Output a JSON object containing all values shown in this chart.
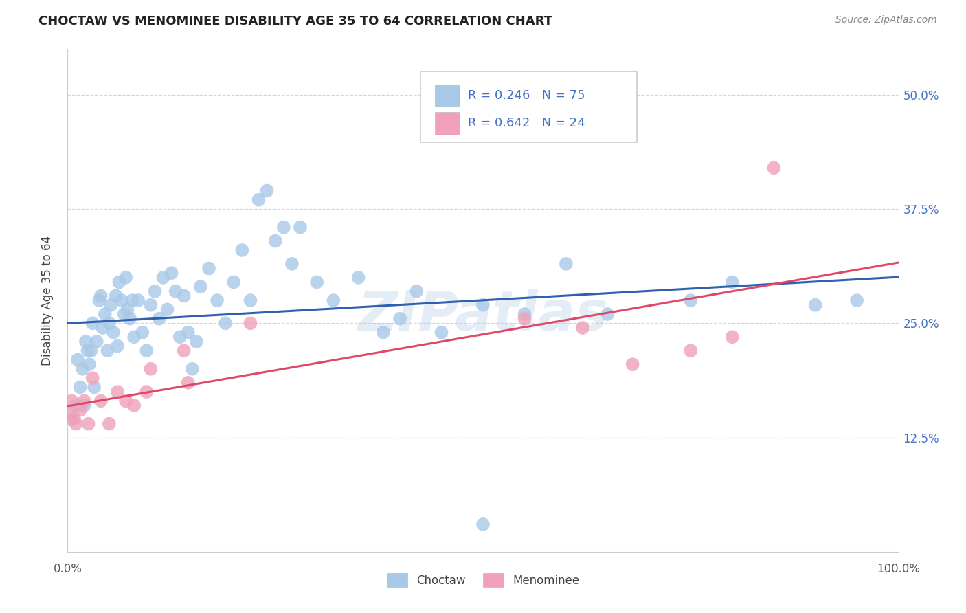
{
  "title": "CHOCTAW VS MENOMINEE DISABILITY AGE 35 TO 64 CORRELATION CHART",
  "source": "Source: ZipAtlas.com",
  "ylabel": "Disability Age 35 to 64",
  "watermark": "ZIPatlas",
  "legend_r_choctaw": "R = 0.246",
  "legend_n_choctaw": "N = 75",
  "legend_r_menominee": "R = 0.642",
  "legend_n_menominee": "N = 24",
  "choctaw_color": "#a8c8e8",
  "choctaw_line_color": "#3060b0",
  "menominee_color": "#f0a0b8",
  "menominee_line_color": "#e04868",
  "choctaw_x": [
    0.5,
    1.0,
    1.2,
    1.5,
    1.8,
    2.0,
    2.2,
    2.4,
    2.6,
    2.8,
    3.0,
    3.2,
    3.5,
    3.8,
    4.0,
    4.2,
    4.5,
    4.8,
    5.0,
    5.2,
    5.5,
    5.8,
    6.0,
    6.2,
    6.5,
    6.8,
    7.0,
    7.2,
    7.5,
    7.8,
    8.0,
    8.5,
    9.0,
    9.5,
    10.0,
    10.5,
    11.0,
    11.5,
    12.0,
    12.5,
    13.0,
    13.5,
    14.0,
    14.5,
    15.0,
    15.5,
    16.0,
    17.0,
    18.0,
    19.0,
    20.0,
    21.0,
    22.0,
    23.0,
    24.0,
    25.0,
    26.0,
    27.0,
    28.0,
    30.0,
    32.0,
    35.0,
    38.0,
    40.0,
    42.0,
    45.0,
    50.0,
    55.0,
    60.0,
    65.0,
    75.0,
    80.0,
    90.0,
    95.0,
    50.0
  ],
  "choctaw_y": [
    14.5,
    16.0,
    21.0,
    18.0,
    20.0,
    16.0,
    23.0,
    22.0,
    20.5,
    22.0,
    25.0,
    18.0,
    23.0,
    27.5,
    28.0,
    24.5,
    26.0,
    22.0,
    25.0,
    27.0,
    24.0,
    28.0,
    22.5,
    29.5,
    27.5,
    26.0,
    30.0,
    26.5,
    25.5,
    27.5,
    23.5,
    27.5,
    24.0,
    22.0,
    27.0,
    28.5,
    25.5,
    30.0,
    26.5,
    30.5,
    28.5,
    23.5,
    28.0,
    24.0,
    20.0,
    23.0,
    29.0,
    31.0,
    27.5,
    25.0,
    29.5,
    33.0,
    27.5,
    38.5,
    39.5,
    34.0,
    35.5,
    31.5,
    35.5,
    29.5,
    27.5,
    30.0,
    24.0,
    25.5,
    28.5,
    24.0,
    27.0,
    26.0,
    31.5,
    26.0,
    27.5,
    29.5,
    27.0,
    27.5,
    3.0
  ],
  "menominee_x": [
    0.3,
    0.5,
    0.8,
    1.0,
    1.5,
    2.0,
    2.5,
    3.0,
    4.0,
    5.0,
    6.0,
    7.0,
    8.0,
    9.5,
    10.0,
    14.0,
    14.5,
    22.0,
    55.0,
    62.0,
    68.0,
    75.0,
    80.0,
    85.0
  ],
  "menominee_y": [
    15.0,
    16.5,
    14.5,
    14.0,
    15.5,
    16.5,
    14.0,
    19.0,
    16.5,
    14.0,
    17.5,
    16.5,
    16.0,
    17.5,
    20.0,
    22.0,
    18.5,
    25.0,
    25.5,
    24.5,
    20.5,
    22.0,
    23.5,
    42.0
  ],
  "xlim": [
    0,
    100
  ],
  "ylim": [
    0,
    55
  ],
  "yticks": [
    12.5,
    25.0,
    37.5,
    50.0
  ],
  "ytick_labels": [
    "12.5%",
    "25.0%",
    "37.5%",
    "50.0%"
  ],
  "xticks": [
    0,
    100
  ],
  "xtick_labels": [
    "0.0%",
    "100.0%"
  ],
  "background_color": "#ffffff",
  "grid_color": "#cccccc",
  "title_color": "#222222",
  "source_color": "#888888",
  "tick_color": "#4472c4",
  "ylabel_color": "#444444"
}
